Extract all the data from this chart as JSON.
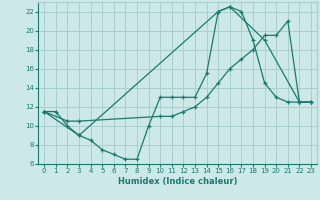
{
  "xlabel": "Humidex (Indice chaleur)",
  "bg_color": "#cce8e8",
  "grid_color": "#aacece",
  "line_color": "#1a7a6e",
  "xlim": [
    -0.5,
    23.5
  ],
  "ylim": [
    6,
    23
  ],
  "xticks": [
    0,
    1,
    2,
    3,
    4,
    5,
    6,
    7,
    8,
    9,
    10,
    11,
    12,
    13,
    14,
    15,
    16,
    17,
    18,
    19,
    20,
    21,
    22,
    23
  ],
  "yticks": [
    6,
    8,
    10,
    12,
    14,
    16,
    18,
    20,
    22
  ],
  "line1_x": [
    0,
    1,
    2,
    3,
    4,
    5,
    6,
    7,
    8,
    9,
    10,
    11,
    12,
    13,
    14,
    15,
    16,
    17,
    18,
    19,
    20,
    21,
    22,
    23
  ],
  "line1_y": [
    11.5,
    11.5,
    10.0,
    9.0,
    8.5,
    7.5,
    7.0,
    6.5,
    6.5,
    10.0,
    13.0,
    13.0,
    13.0,
    13.0,
    15.5,
    22.0,
    22.5,
    22.0,
    19.0,
    14.5,
    13.0,
    12.5,
    12.5,
    12.5
  ],
  "line2_x": [
    0,
    2,
    3,
    10,
    11,
    12,
    13,
    14,
    15,
    16,
    17,
    18,
    19,
    20,
    21,
    22,
    23
  ],
  "line2_y": [
    11.5,
    10.5,
    10.5,
    11.0,
    11.0,
    11.5,
    12.0,
    13.0,
    14.5,
    16.0,
    17.0,
    18.0,
    19.5,
    19.5,
    21.0,
    12.5,
    12.5
  ],
  "line3_x": [
    0,
    3,
    15,
    16,
    19,
    22,
    23
  ],
  "line3_y": [
    11.5,
    9.0,
    22.0,
    22.5,
    19.0,
    12.5,
    12.5
  ]
}
